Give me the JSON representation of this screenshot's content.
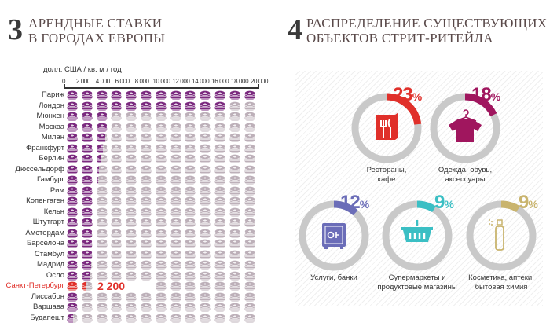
{
  "left": {
    "number": "3",
    "title_line1": "АРЕНДНЫЕ СТАВКИ",
    "title_line2": "В ГОРОДАХ ЕВРОПЫ"
  },
  "right": {
    "number": "4",
    "title_line1": "РАСПРЕДЕЛЕНИЕ СУЩЕСТВУЮЩИХ",
    "title_line2": "ОБЪЕКТОВ СТРИТ-РИТЕЙЛА"
  },
  "colors": {
    "coin": "#7b2a7f",
    "coin_empty": "#bdb0b9",
    "highlight": "#e0302a",
    "donut_track": "#c9c9c9"
  },
  "chart_data": [
    {
      "type": "bar",
      "style": "pictograph-coins",
      "orientation": "horizontal",
      "unit_label": "долл. США / кв. м / год",
      "xlim": [
        0,
        20000
      ],
      "ticks": [
        "0",
        "2 000",
        "4 000",
        "6 000",
        "8 000",
        "10 000",
        "12 000",
        "14 000",
        "16 000",
        "18 000",
        "20 000"
      ],
      "categories": [
        "Париж",
        "Лондон",
        "Мюнхен",
        "Москва",
        "Милан",
        "Франкфурт",
        "Берлин",
        "Дюссельдорф",
        "Гамбург",
        "Рим",
        "Копенгаген",
        "Кельн",
        "Штутгарт",
        "Амстердам",
        "Барселона",
        "Стамбул",
        "Мадрид",
        "Осло",
        "Санкт-Петербург",
        "Лиссабон",
        "Варшава",
        "Будапешт"
      ],
      "values": [
        20000,
        16900,
        4600,
        4600,
        4300,
        4000,
        3700,
        3500,
        3400,
        3200,
        3100,
        3100,
        3100,
        3000,
        3000,
        3000,
        2900,
        2800,
        2200,
        1550,
        1550,
        900
      ],
      "highlight": {
        "category": "Санкт-Петербург",
        "label": "2 200"
      }
    },
    {
      "type": "pie",
      "style": "donuts",
      "slices": [
        {
          "label": "Рестораны, кафе",
          "value": 23,
          "pct_text": "23",
          "color": "#e0302a",
          "icon": "menu-fork-knife-icon"
        },
        {
          "label": "Одежда, обувь, аксессуары",
          "value": 18,
          "pct_text": "18",
          "color": "#a0165e",
          "icon": "tshirt-hanger-icon"
        },
        {
          "label": "Услуги, банки",
          "value": 12,
          "pct_text": "12",
          "color": "#6b6db8",
          "icon": "safe-icon"
        },
        {
          "label": "Супермаркеты и продуктовые магазины",
          "value": 9,
          "pct_text": "9",
          "color": "#3bbfc4",
          "icon": "basket-icon"
        },
        {
          "label": "Косметика, аптеки, бытовая химия",
          "value": 9,
          "pct_text": "9",
          "color": "#c9b46e",
          "icon": "spray-bottle-icon"
        }
      ],
      "percent_sign": "%"
    }
  ]
}
